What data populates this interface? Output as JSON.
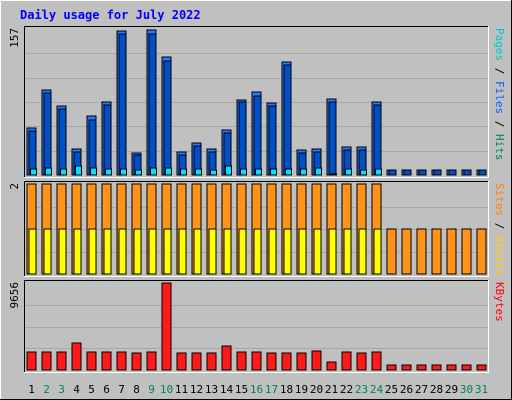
{
  "chart_data": {
    "type": "bar",
    "title": "Daily usage for July 2022",
    "categories": [
      "1",
      "2",
      "3",
      "4",
      "5",
      "6",
      "7",
      "8",
      "9",
      "10",
      "11",
      "12",
      "13",
      "14",
      "15",
      "16",
      "17",
      "18",
      "19",
      "20",
      "21",
      "22",
      "23",
      "24",
      "25",
      "26",
      "27",
      "28",
      "29",
      "30",
      "31"
    ],
    "weekend_categories": [
      "2",
      "3",
      "9",
      "10",
      "16",
      "17",
      "23",
      "24",
      "30",
      "31"
    ],
    "panels": [
      {
        "id": "hits_files_pages",
        "scale_label": "157",
        "ymax": 157,
        "axis_legend": [
          {
            "text": "Pages",
            "color": "#00c8c8"
          },
          {
            "text": " / ",
            "color": "#000000"
          },
          {
            "text": "Files",
            "color": "#0060ff"
          },
          {
            "text": " / ",
            "color": "#000000"
          },
          {
            "text": "Hits",
            "color": "#00805c"
          }
        ],
        "series": [
          {
            "name": "Hits",
            "color": "#2c78ff",
            "values": [
              51,
              91,
              74,
              28,
              63,
              79,
              155,
              24,
              156,
              127,
              25,
              34,
              28,
              48,
              81,
              89,
              77,
              122,
              27,
              28,
              82,
              30,
              30,
              79,
              5,
              5,
              5,
              5,
              5,
              5,
              5
            ]
          },
          {
            "name": "Files",
            "color": "#0050c8",
            "values": [
              47,
              88,
              71,
              25,
              59,
              75,
              152,
              21,
              152,
              123,
              22,
              31,
              25,
              45,
              78,
              85,
              74,
              118,
              24,
              25,
              78,
              27,
              27,
              75,
              5,
              5,
              5,
              5,
              5,
              5,
              5
            ]
          },
          {
            "name": "Pages",
            "color": "#00e0ff",
            "values": [
              6,
              7,
              6,
              10,
              7,
              6,
              6,
              5,
              7,
              8,
              6,
              6,
              5,
              10,
              6,
              6,
              6,
              6,
              6,
              7,
              1,
              6,
              5,
              6,
              0,
              0,
              0,
              0,
              0,
              0,
              0
            ]
          }
        ]
      },
      {
        "id": "visits_sites",
        "scale_label": "2",
        "ymax": 2,
        "axis_legend": [
          {
            "text": "Sites",
            "color": "#ff8000"
          },
          {
            "text": " / ",
            "color": "#000000"
          },
          {
            "text": "Visits",
            "color": "#ffd000"
          }
        ],
        "series": [
          {
            "name": "Visits",
            "color": "#ff9218",
            "values": [
              2,
              2,
              2,
              2,
              2,
              2,
              2,
              2,
              2,
              2,
              2,
              2,
              2,
              2,
              2,
              2,
              2,
              2,
              2,
              2,
              2,
              2,
              2,
              2,
              1,
              1,
              1,
              1,
              1,
              1,
              1
            ]
          },
          {
            "name": "Sites",
            "color": "#ffff00",
            "values": [
              1,
              1,
              1,
              1,
              1,
              1,
              1,
              1,
              1,
              1,
              1,
              1,
              1,
              1,
              1,
              1,
              1,
              1,
              1,
              1,
              1,
              1,
              1,
              1,
              0,
              0,
              0,
              0,
              0,
              0,
              0
            ]
          }
        ]
      },
      {
        "id": "kbytes",
        "scale_label": "9656",
        "ymax": 9656,
        "axis_legend": [
          {
            "text": "KBytes",
            "color": "#ff0000"
          }
        ],
        "series": [
          {
            "name": "KBytes",
            "color": "#ff1a1a",
            "values": [
              1950,
              1950,
              1950,
              3050,
              1950,
              1950,
              1950,
              1850,
              1950,
              9656,
              1850,
              1850,
              1850,
              2650,
              1950,
              1950,
              1850,
              1850,
              1850,
              2150,
              850,
              1950,
              1850,
              1950,
              550,
              550,
              550,
              550,
              550,
              550,
              550
            ]
          }
        ]
      }
    ],
    "colors": {
      "background": "#c0c0c0",
      "title": "#0000ff",
      "weekday_label": "#000000",
      "weekend_label": "#00805c",
      "gridline": "#a8a8a8"
    },
    "grid": true
  }
}
